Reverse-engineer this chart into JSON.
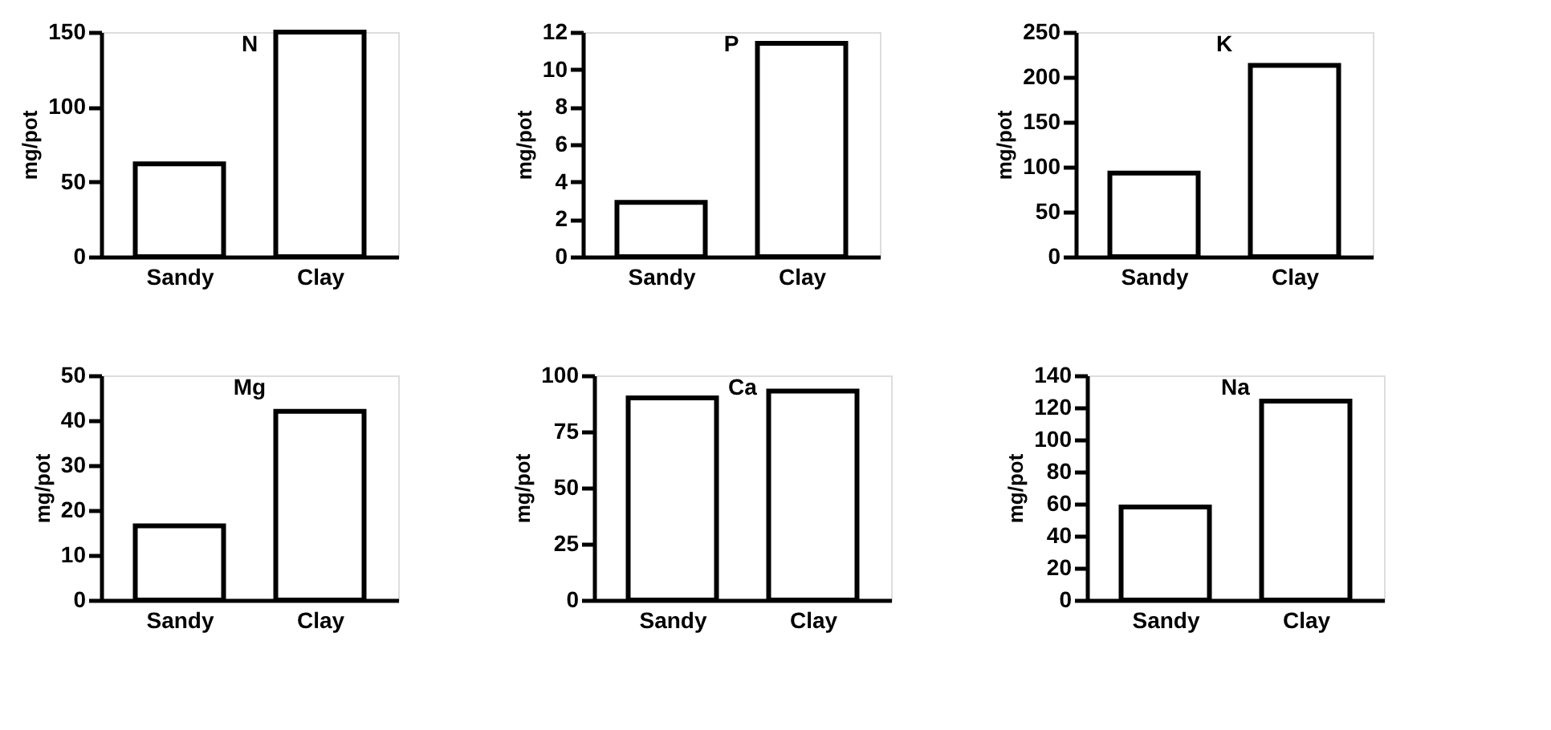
{
  "chart_data": [
    {
      "type": "bar",
      "title": "N",
      "ylabel": "mg/pot",
      "categories": [
        "Sandy",
        "Clay"
      ],
      "values": [
        62,
        150
      ],
      "color": "#ffffff",
      "ylim": [
        0,
        150
      ],
      "yticks": [
        0,
        50,
        100,
        150
      ],
      "grid": false
    },
    {
      "type": "bar",
      "title": "P",
      "ylabel": "mg/pot",
      "categories": [
        "Sandy",
        "Clay"
      ],
      "values": [
        2.9,
        11.4
      ],
      "color": "#ffffff",
      "ylim": [
        0,
        12
      ],
      "yticks": [
        0,
        2,
        4,
        6,
        8,
        10,
        12
      ],
      "grid": false
    },
    {
      "type": "bar",
      "title": "K",
      "ylabel": "mg/pot",
      "categories": [
        "Sandy",
        "Clay"
      ],
      "values": [
        93,
        213
      ],
      "color": "#ffffff",
      "ylim": [
        0,
        250
      ],
      "yticks": [
        0,
        50,
        100,
        150,
        200,
        250
      ],
      "grid": false
    },
    {
      "type": "bar",
      "title": "Mg",
      "ylabel": "mg/pot",
      "categories": [
        "Sandy",
        "Clay"
      ],
      "values": [
        16.5,
        42
      ],
      "color": "#ffffff",
      "ylim": [
        0,
        50
      ],
      "yticks": [
        0,
        10,
        20,
        30,
        40,
        50
      ],
      "grid": false
    },
    {
      "type": "bar",
      "title": "Ca",
      "ylabel": "mg/pot",
      "categories": [
        "Sandy",
        "Clay"
      ],
      "values": [
        90,
        93
      ],
      "color": "#ffffff",
      "ylim": [
        0,
        100
      ],
      "yticks": [
        0,
        25,
        50,
        75,
        100
      ],
      "grid": false
    },
    {
      "type": "bar",
      "title": "Na",
      "ylabel": "mg/pot",
      "categories": [
        "Sandy",
        "Clay"
      ],
      "values": [
        58,
        124
      ],
      "color": "#ffffff",
      "ylim": [
        0,
        140
      ],
      "yticks": [
        0,
        20,
        40,
        60,
        80,
        100,
        120,
        140
      ],
      "grid": false
    }
  ]
}
